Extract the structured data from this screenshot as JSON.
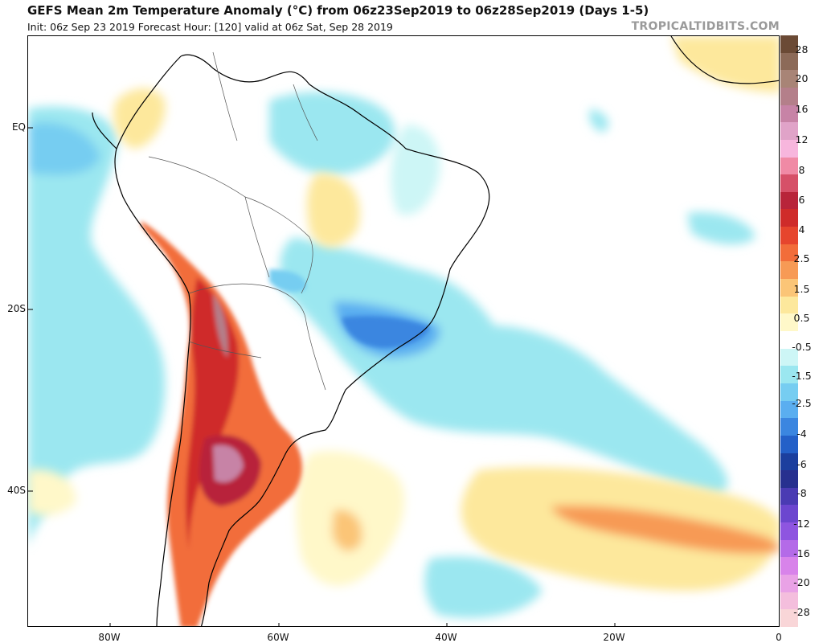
{
  "header": {
    "title": "GEFS Mean 2m Temperature Anomaly (°C) from 06z23Sep2019 to 06z28Sep2019 (Days 1-5)",
    "subtitle": "Init: 06z Sep 23 2019   Forecast Hour: [120]   valid at 06z Sat, Sep 28 2019",
    "brand": "TROPICALTIDBITS.COM"
  },
  "map": {
    "latitude_labels": [
      "EQ",
      "20S",
      "40S"
    ],
    "longitude_labels": [
      "80W",
      "60W",
      "40W",
      "20W",
      "0"
    ],
    "colors": {
      "ocean_background": "#ffffff",
      "coastline": "#000000",
      "borders": "#555555"
    }
  },
  "colorbar": {
    "labels": [
      "28",
      "20",
      "16",
      "12",
      "8",
      "6",
      "4",
      "2.5",
      "1.5",
      "0.5",
      "-0.5",
      "-1.5",
      "-2.5",
      "-4",
      "-6",
      "-8",
      "-12",
      "-16",
      "-20",
      "-28"
    ],
    "colors": [
      "#6b4a35",
      "#8c6a58",
      "#a88476",
      "#b47f8a",
      "#c783a6",
      "#e0a3c8",
      "#f7b6dd",
      "#f08aa5",
      "#d65068",
      "#b8243a",
      "#cf2b2a",
      "#e6452d",
      "#f26d3a",
      "#f79a55",
      "#fbc577",
      "#fde89c",
      "#fff8c9",
      "#ffffff",
      "#cdf6f6",
      "#9be7f0",
      "#76cdf1",
      "#5aaef0",
      "#3b86e0",
      "#2460c8",
      "#1c3f9e",
      "#27308f",
      "#4a3bb3",
      "#6c46cf",
      "#8e55e0",
      "#b46ae8",
      "#d883ea",
      "#e9a2e6",
      "#f4bedd",
      "#f9d6d8"
    ]
  }
}
